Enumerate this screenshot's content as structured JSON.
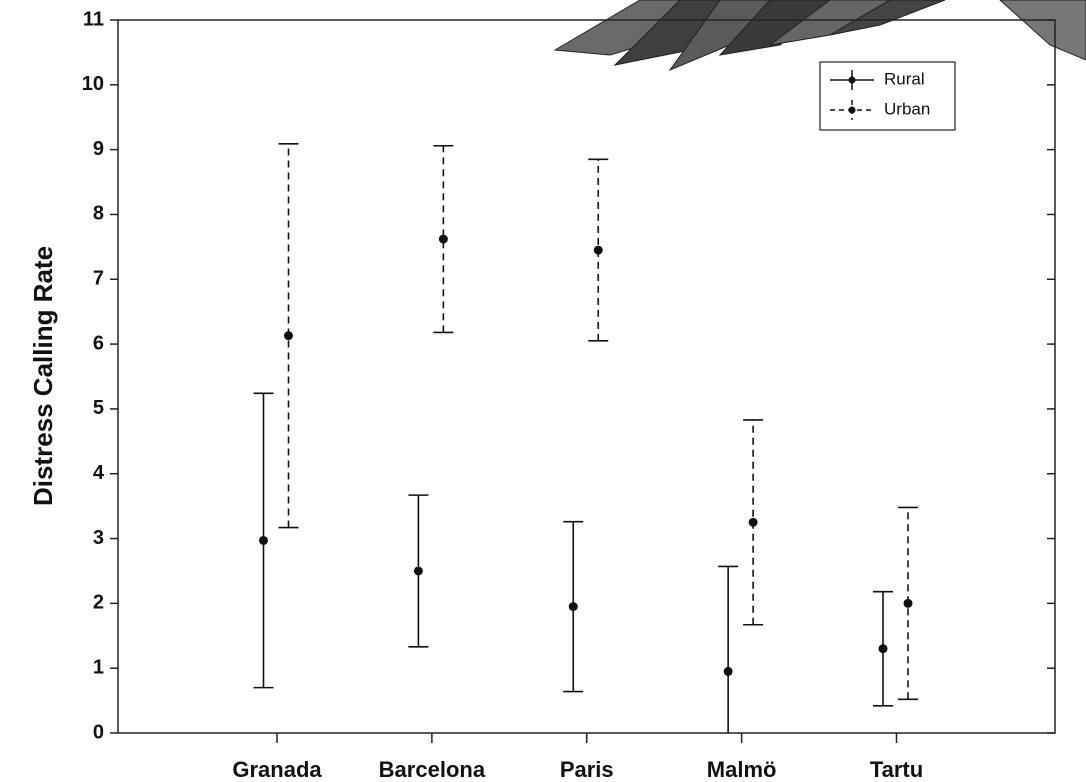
{
  "chart_data": {
    "type": "errorbar",
    "y_label": "Distress Calling Rate",
    "categories": [
      "Granada",
      "Barcelona",
      "Paris",
      "Malmö",
      "Tartu"
    ],
    "series": [
      {
        "name": "Rural",
        "color": "#111111",
        "line_style": "solid",
        "values": [
          2.97,
          2.5,
          1.95,
          0.95,
          1.3
        ],
        "errors": [
          2.27,
          1.17,
          1.31,
          1.62,
          0.88
        ]
      },
      {
        "name": "Urban",
        "color": "#111111",
        "line_style": "dashed",
        "values": [
          6.13,
          7.62,
          7.45,
          3.25,
          2.0
        ],
        "errors": [
          2.96,
          1.44,
          1.4,
          1.58,
          1.48
        ]
      }
    ],
    "ylim": [
      0,
      11
    ],
    "yticks": [
      0,
      1,
      2,
      3,
      4,
      5,
      6,
      7,
      8,
      9,
      10,
      11
    ],
    "legend": "upper right"
  }
}
